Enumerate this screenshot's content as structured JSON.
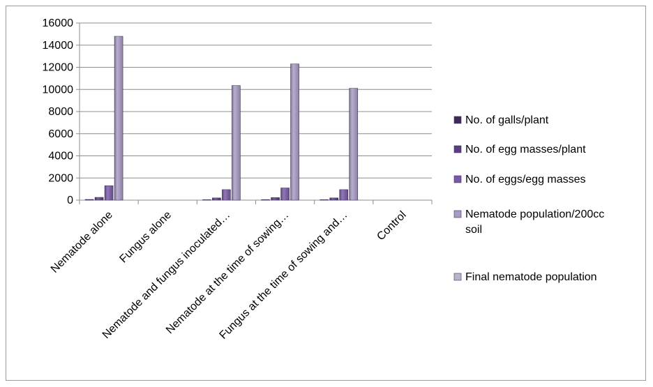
{
  "chart_data": {
    "type": "bar",
    "categories": [
      "Nematode alone",
      "Fungus alone",
      "Nematode and fungus inoculated…",
      "Nematode at the time of sowing…",
      "Fungus at the time of sowing and…",
      "Control"
    ],
    "series": [
      {
        "name": "No. of galls/plant",
        "color": "#3f2a5c",
        "values": [
          60,
          0,
          40,
          45,
          40,
          0
        ]
      },
      {
        "name": "No. of egg masses/plant",
        "color": "#5a3d82",
        "values": [
          250,
          0,
          200,
          230,
          200,
          0
        ]
      },
      {
        "name": "No. of eggs/egg masses",
        "color": "#7a5aa8",
        "values": [
          1300,
          0,
          950,
          1100,
          950,
          0
        ]
      },
      {
        "name": "Nematode population/200cc soil",
        "color": "#a99bc4",
        "values": [
          14800,
          0,
          10350,
          12300,
          10100,
          0
        ]
      },
      {
        "name": "Final nematode population",
        "color": "#b9b4cc",
        "values": [
          0,
          0,
          0,
          0,
          0,
          0
        ]
      }
    ],
    "ylim": [
      0,
      16000
    ],
    "yticks": [
      0,
      2000,
      4000,
      6000,
      8000,
      10000,
      12000,
      14000,
      16000
    ],
    "grid": true,
    "legend_position": "right",
    "title": "",
    "xlabel": "",
    "ylabel": ""
  }
}
